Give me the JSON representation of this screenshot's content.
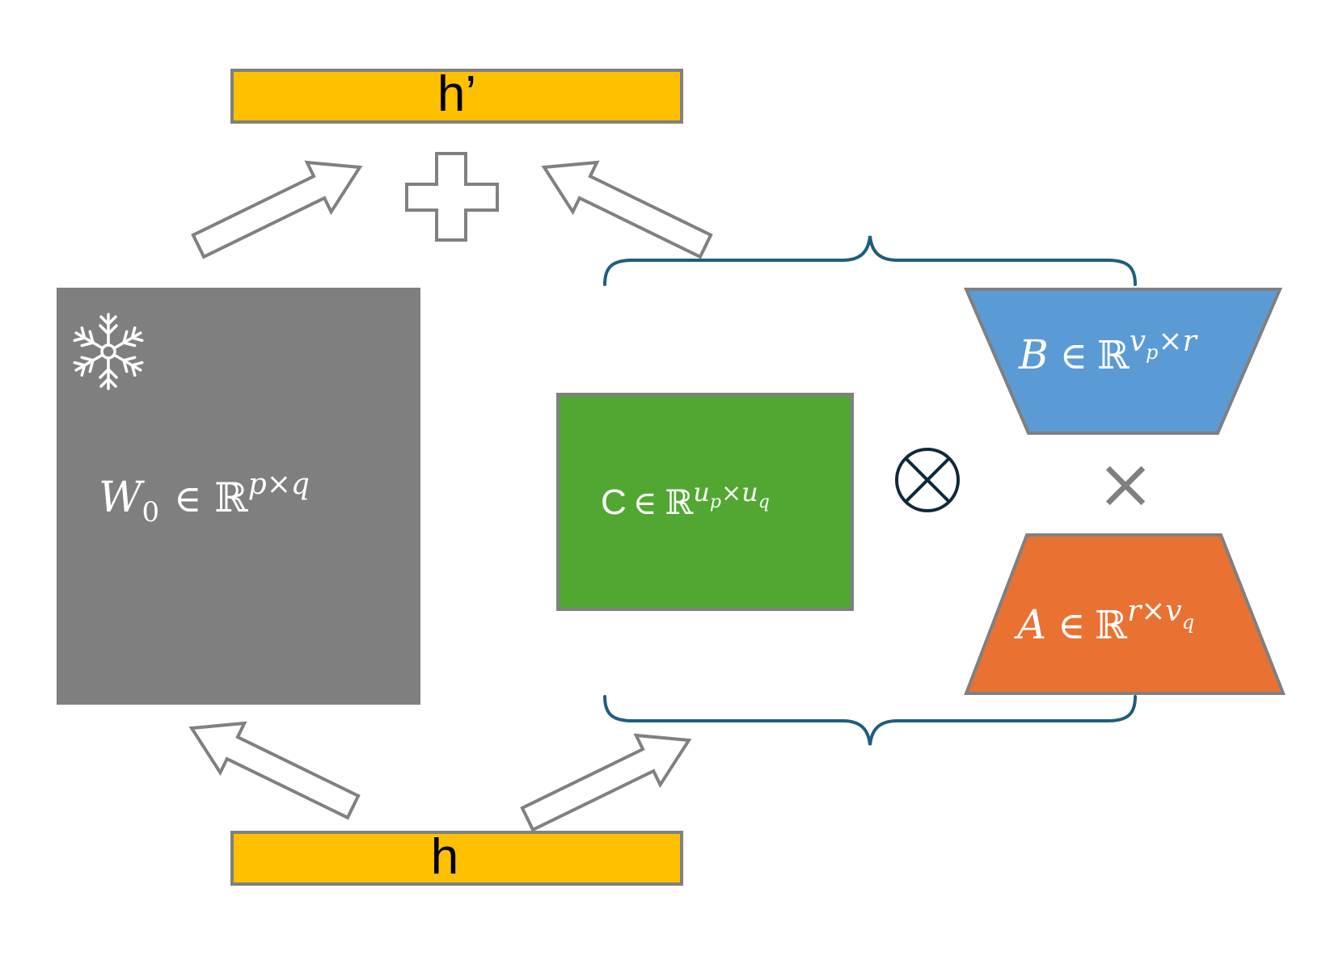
{
  "output_bar": {
    "label": "h’",
    "color": "#FFC000"
  },
  "input_bar": {
    "label": "h",
    "color": "#FFC000"
  },
  "frozen_weight": {
    "color": "#7F7F7F",
    "icon": "snowflake-icon",
    "symbol": "W",
    "subscript": "0",
    "member": "∈",
    "field": "ℝ",
    "exponent": "p×q"
  },
  "core_tensor": {
    "color": "#52A732",
    "symbol": "C",
    "member": "∈",
    "field": "ℝ",
    "exp_u1": "u",
    "exp_s1": "p",
    "exp_times": "×",
    "exp_u2": "u",
    "exp_s2": "q"
  },
  "kronecker_symbol": "⊗",
  "matrix_b": {
    "color": "#5B9BD5",
    "symbol": "B",
    "member": "∈",
    "field": "ℝ",
    "exp_v": "v",
    "exp_s": "p",
    "exp_rest": "×r"
  },
  "matrix_a": {
    "color": "#E97132",
    "symbol": "A",
    "member": "∈",
    "field": "ℝ",
    "exp_r": "r×v",
    "exp_s": "q"
  },
  "times_symbol": "×",
  "plus_icon": "plus-icon",
  "brace_color": "#1F5E7E",
  "arrow_color": "#808080"
}
